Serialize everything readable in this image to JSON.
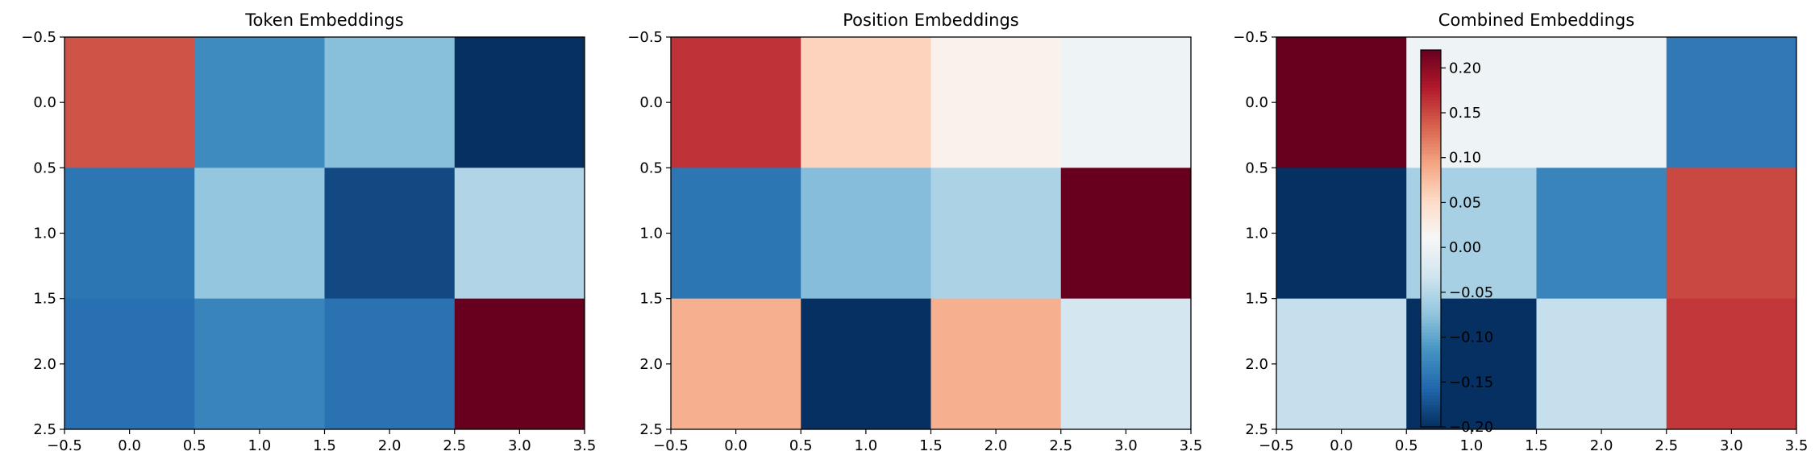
{
  "chart_data": [
    {
      "type": "heatmap",
      "title": "Token Embeddings",
      "colormap": "RdBu_r",
      "vmin": -0.08,
      "vmax": 0.25,
      "xlim": [
        -0.5,
        3.5
      ],
      "ylim": [
        2.5,
        -0.5
      ],
      "xticks": [
        "−0.5",
        "0.0",
        "0.5",
        "1.0",
        "1.5",
        "2.0",
        "2.5",
        "3.0",
        "3.5"
      ],
      "yticks": [
        "−0.5",
        "0.0",
        "0.5",
        "1.0",
        "1.5",
        "2.0",
        "2.5"
      ],
      "values": [
        [
          0.19,
          -0.02,
          0.015,
          -0.08
        ],
        [
          -0.035,
          0.02,
          -0.065,
          0.035
        ],
        [
          -0.04,
          -0.025,
          -0.038,
          0.25
        ]
      ]
    },
    {
      "type": "heatmap",
      "title": "Position Embeddings",
      "colormap": "RdBu_r",
      "vmin": -0.18,
      "vmax": 0.26,
      "xlim": [
        -0.5,
        3.5
      ],
      "ylim": [
        2.5,
        -0.5
      ],
      "xticks": [
        "−0.5",
        "0.0",
        "0.5",
        "1.0",
        "1.5",
        "2.0",
        "2.5",
        "3.0",
        "3.5"
      ],
      "yticks": [
        "−0.5",
        "0.0",
        "0.5",
        "1.0",
        "1.5",
        "2.0",
        "2.5"
      ],
      "values": [
        [
          0.2,
          0.09,
          0.05,
          0.03
        ],
        [
          -0.12,
          -0.055,
          -0.03,
          0.26
        ],
        [
          0.12,
          -0.18,
          0.12,
          0.0
        ]
      ]
    },
    {
      "type": "heatmap",
      "title": "Combined Embeddings",
      "colormap": "RdBu_r",
      "vmin": -0.2,
      "vmax": 0.22,
      "xlim": [
        -0.5,
        3.5
      ],
      "ylim": [
        2.5,
        -0.5
      ],
      "xticks": [
        "−0.5",
        "0.0",
        "0.5",
        "1.0",
        "1.5",
        "2.0",
        "2.5",
        "3.0",
        "3.5"
      ],
      "yticks": [
        "−0.5",
        "0.0",
        "0.5",
        "1.0",
        "1.5",
        "2.0",
        "2.5"
      ],
      "values": [
        [
          0.22,
          0.0,
          0.0,
          -0.14
        ],
        [
          -0.2,
          -0.06,
          -0.13,
          0.15
        ],
        [
          -0.04,
          -0.2,
          -0.04,
          0.16
        ]
      ],
      "colorbar": {
        "ticks": [
          0.2,
          0.15,
          0.1,
          0.05,
          0.0,
          -0.05,
          -0.1,
          -0.15,
          -0.2
        ],
        "tick_labels": [
          "0.20",
          "0.15",
          "0.10",
          "0.05",
          "0.00",
          "−0.05",
          "−0.10",
          "−0.15",
          "−0.20"
        ]
      }
    }
  ]
}
